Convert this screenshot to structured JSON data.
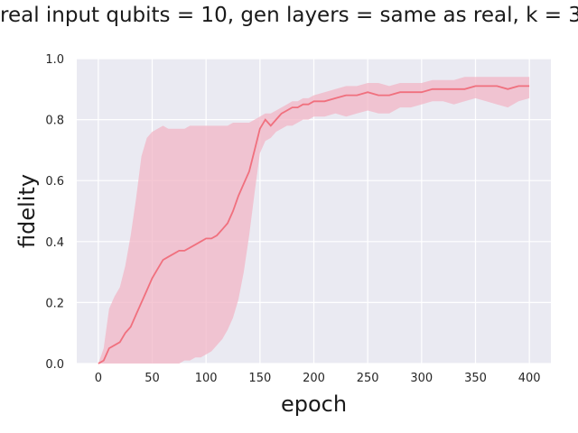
{
  "chart_data": {
    "type": "line",
    "title": "real input qubits = 10, gen layers = same as real, k = 3",
    "xlabel": "epoch",
    "ylabel": "fidelity",
    "xlim": [
      -20,
      420
    ],
    "ylim": [
      0,
      1.0
    ],
    "xticks": [
      "0",
      "50",
      "100",
      "150",
      "200",
      "250",
      "300",
      "350",
      "400"
    ],
    "yticks": [
      "0.0",
      "0.2",
      "0.4",
      "0.6",
      "0.8",
      "1.0"
    ],
    "grid": true,
    "background": "#eaeaf2",
    "line_color": "#f0707e",
    "band_color": "#f2b6c6",
    "series": [
      {
        "x": [
          0,
          5,
          10,
          15,
          20,
          25,
          30,
          35,
          40,
          45,
          50,
          55,
          60,
          65,
          70,
          75,
          80,
          85,
          90,
          95,
          100,
          105,
          110,
          115,
          120,
          125,
          130,
          135,
          140,
          145,
          150,
          155,
          160,
          165,
          170,
          175,
          180,
          185,
          190,
          195,
          200,
          210,
          220,
          230,
          240,
          250,
          260,
          270,
          280,
          290,
          300,
          310,
          320,
          330,
          340,
          350,
          360,
          370,
          380,
          390,
          400
        ],
        "y": [
          0.0,
          0.01,
          0.05,
          0.06,
          0.07,
          0.1,
          0.12,
          0.16,
          0.2,
          0.24,
          0.28,
          0.31,
          0.34,
          0.35,
          0.36,
          0.37,
          0.37,
          0.38,
          0.39,
          0.4,
          0.41,
          0.41,
          0.42,
          0.44,
          0.46,
          0.5,
          0.55,
          0.59,
          0.63,
          0.7,
          0.77,
          0.8,
          0.78,
          0.8,
          0.82,
          0.83,
          0.84,
          0.84,
          0.85,
          0.85,
          0.86,
          0.86,
          0.87,
          0.88,
          0.88,
          0.89,
          0.88,
          0.88,
          0.89,
          0.89,
          0.89,
          0.9,
          0.9,
          0.9,
          0.9,
          0.91,
          0.91,
          0.91,
          0.9,
          0.91,
          0.91
        ],
        "lower": [
          0.0,
          0.0,
          0.0,
          0.0,
          0.0,
          0.0,
          0.0,
          0.0,
          0.0,
          0.0,
          0.0,
          0.0,
          0.0,
          0.0,
          0.0,
          0.0,
          0.01,
          0.01,
          0.02,
          0.02,
          0.03,
          0.04,
          0.06,
          0.08,
          0.11,
          0.15,
          0.21,
          0.3,
          0.42,
          0.56,
          0.69,
          0.73,
          0.74,
          0.76,
          0.77,
          0.78,
          0.78,
          0.79,
          0.8,
          0.8,
          0.81,
          0.81,
          0.82,
          0.81,
          0.82,
          0.83,
          0.82,
          0.82,
          0.84,
          0.84,
          0.85,
          0.86,
          0.86,
          0.85,
          0.86,
          0.87,
          0.86,
          0.85,
          0.84,
          0.86,
          0.87
        ],
        "upper": [
          0.0,
          0.05,
          0.18,
          0.22,
          0.25,
          0.32,
          0.42,
          0.54,
          0.68,
          0.74,
          0.76,
          0.77,
          0.78,
          0.77,
          0.77,
          0.77,
          0.77,
          0.78,
          0.78,
          0.78,
          0.78,
          0.78,
          0.78,
          0.78,
          0.78,
          0.79,
          0.79,
          0.79,
          0.79,
          0.8,
          0.81,
          0.82,
          0.82,
          0.83,
          0.84,
          0.85,
          0.86,
          0.86,
          0.87,
          0.87,
          0.88,
          0.89,
          0.9,
          0.91,
          0.91,
          0.92,
          0.92,
          0.91,
          0.92,
          0.92,
          0.92,
          0.93,
          0.93,
          0.93,
          0.94,
          0.94,
          0.94,
          0.94,
          0.94,
          0.94,
          0.94
        ]
      }
    ]
  }
}
